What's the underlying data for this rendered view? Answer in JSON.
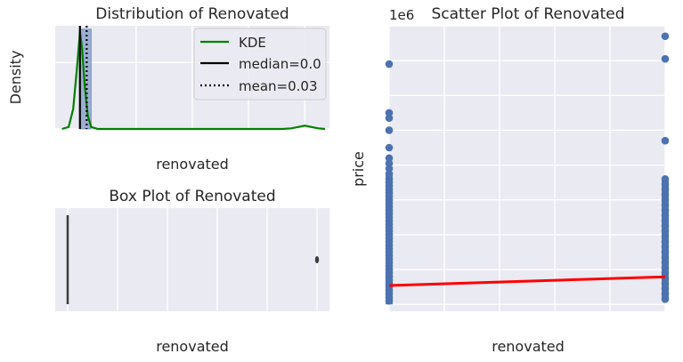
{
  "chart_data": [
    {
      "type": "histogram",
      "title": "Distribution of Renovated",
      "xlabel": "renovated",
      "ylabel": "Density",
      "xlim": [
        -0.11,
        1.11
      ],
      "ylim": [
        0,
        15.5
      ],
      "x_ticks": [
        "0.00",
        "0.25",
        "0.50",
        "0.75",
        "1.00"
      ],
      "y_ticks": [
        "0",
        "10"
      ],
      "grid": true,
      "bars": [
        {
          "x0": 0.0,
          "x1": 0.05,
          "density": 15.0
        }
      ],
      "kde": [
        [
          -0.08,
          0.0
        ],
        [
          -0.05,
          0.3
        ],
        [
          -0.03,
          3.0
        ],
        [
          -0.015,
          8.5
        ],
        [
          0.0,
          14.6
        ],
        [
          0.01,
          12.0
        ],
        [
          0.02,
          7.0
        ],
        [
          0.035,
          2.0
        ],
        [
          0.05,
          0.3
        ],
        [
          0.08,
          0.0
        ],
        [
          0.9,
          0.0
        ],
        [
          0.94,
          0.1
        ],
        [
          0.97,
          0.3
        ],
        [
          1.0,
          0.5
        ],
        [
          1.03,
          0.3
        ],
        [
          1.06,
          0.1
        ],
        [
          1.09,
          0.0
        ]
      ],
      "median": 0.0,
      "mean": 0.03,
      "legend": [
        "KDE",
        "median=0.0",
        "mean=0.03"
      ],
      "legend_position": "top-right",
      "colors": {
        "bar": "#4c72b0",
        "kde": "#008000",
        "median": "#000000",
        "mean": "#000000"
      }
    },
    {
      "type": "box",
      "title": "Box Plot of Renovated",
      "xlabel": "renovated",
      "xlim": [
        -0.05,
        1.05
      ],
      "x_ticks": [
        "0.0",
        "0.2",
        "0.4",
        "0.6",
        "0.8",
        "1.0"
      ],
      "grid": true,
      "q1": 0.0,
      "median": 0.0,
      "q3": 0.0,
      "whisker_low": 0.0,
      "whisker_high": 0.0,
      "outliers": [
        1.0
      ]
    },
    {
      "type": "scatter",
      "title": "Scatter Plot of Renovated",
      "xlabel": "renovated",
      "ylabel": "price",
      "y_multiplier": "1e6",
      "xlim": [
        0.0,
        1.0
      ],
      "ylim": [
        -0.2,
        8.0
      ],
      "x_ticks": [
        "0.0",
        "0.2",
        "0.4",
        "0.6",
        "0.8",
        "1.0"
      ],
      "y_ticks": [
        "0",
        "1",
        "2",
        "3",
        "4",
        "5",
        "6",
        "7",
        "8"
      ],
      "grid": true,
      "points_x0": [
        0.1,
        0.2,
        0.3,
        0.4,
        0.5,
        0.6,
        0.7,
        0.8,
        0.9,
        1.0,
        1.1,
        1.2,
        1.3,
        1.4,
        1.5,
        1.6,
        1.7,
        1.8,
        1.9,
        2.0,
        2.1,
        2.2,
        2.3,
        2.4,
        2.5,
        2.6,
        2.7,
        2.8,
        2.9,
        3.0,
        3.1,
        3.2,
        3.3,
        3.4,
        3.5,
        3.6,
        3.75,
        3.9,
        4.05,
        4.2,
        4.5,
        5.0,
        5.35,
        5.5,
        6.9
      ],
      "points_x1": [
        0.15,
        0.3,
        0.45,
        0.6,
        0.75,
        0.9,
        1.05,
        1.2,
        1.35,
        1.5,
        1.65,
        1.8,
        1.95,
        2.1,
        2.25,
        2.4,
        2.55,
        2.7,
        2.85,
        3.0,
        3.15,
        3.3,
        3.45,
        3.6,
        4.7,
        7.05,
        7.7
      ],
      "regression": {
        "x": [
          0.0,
          1.0
        ],
        "y": [
          0.54,
          0.79
        ]
      },
      "colors": {
        "points": "#4c72b0",
        "regression": "#ff0000"
      }
    }
  ]
}
